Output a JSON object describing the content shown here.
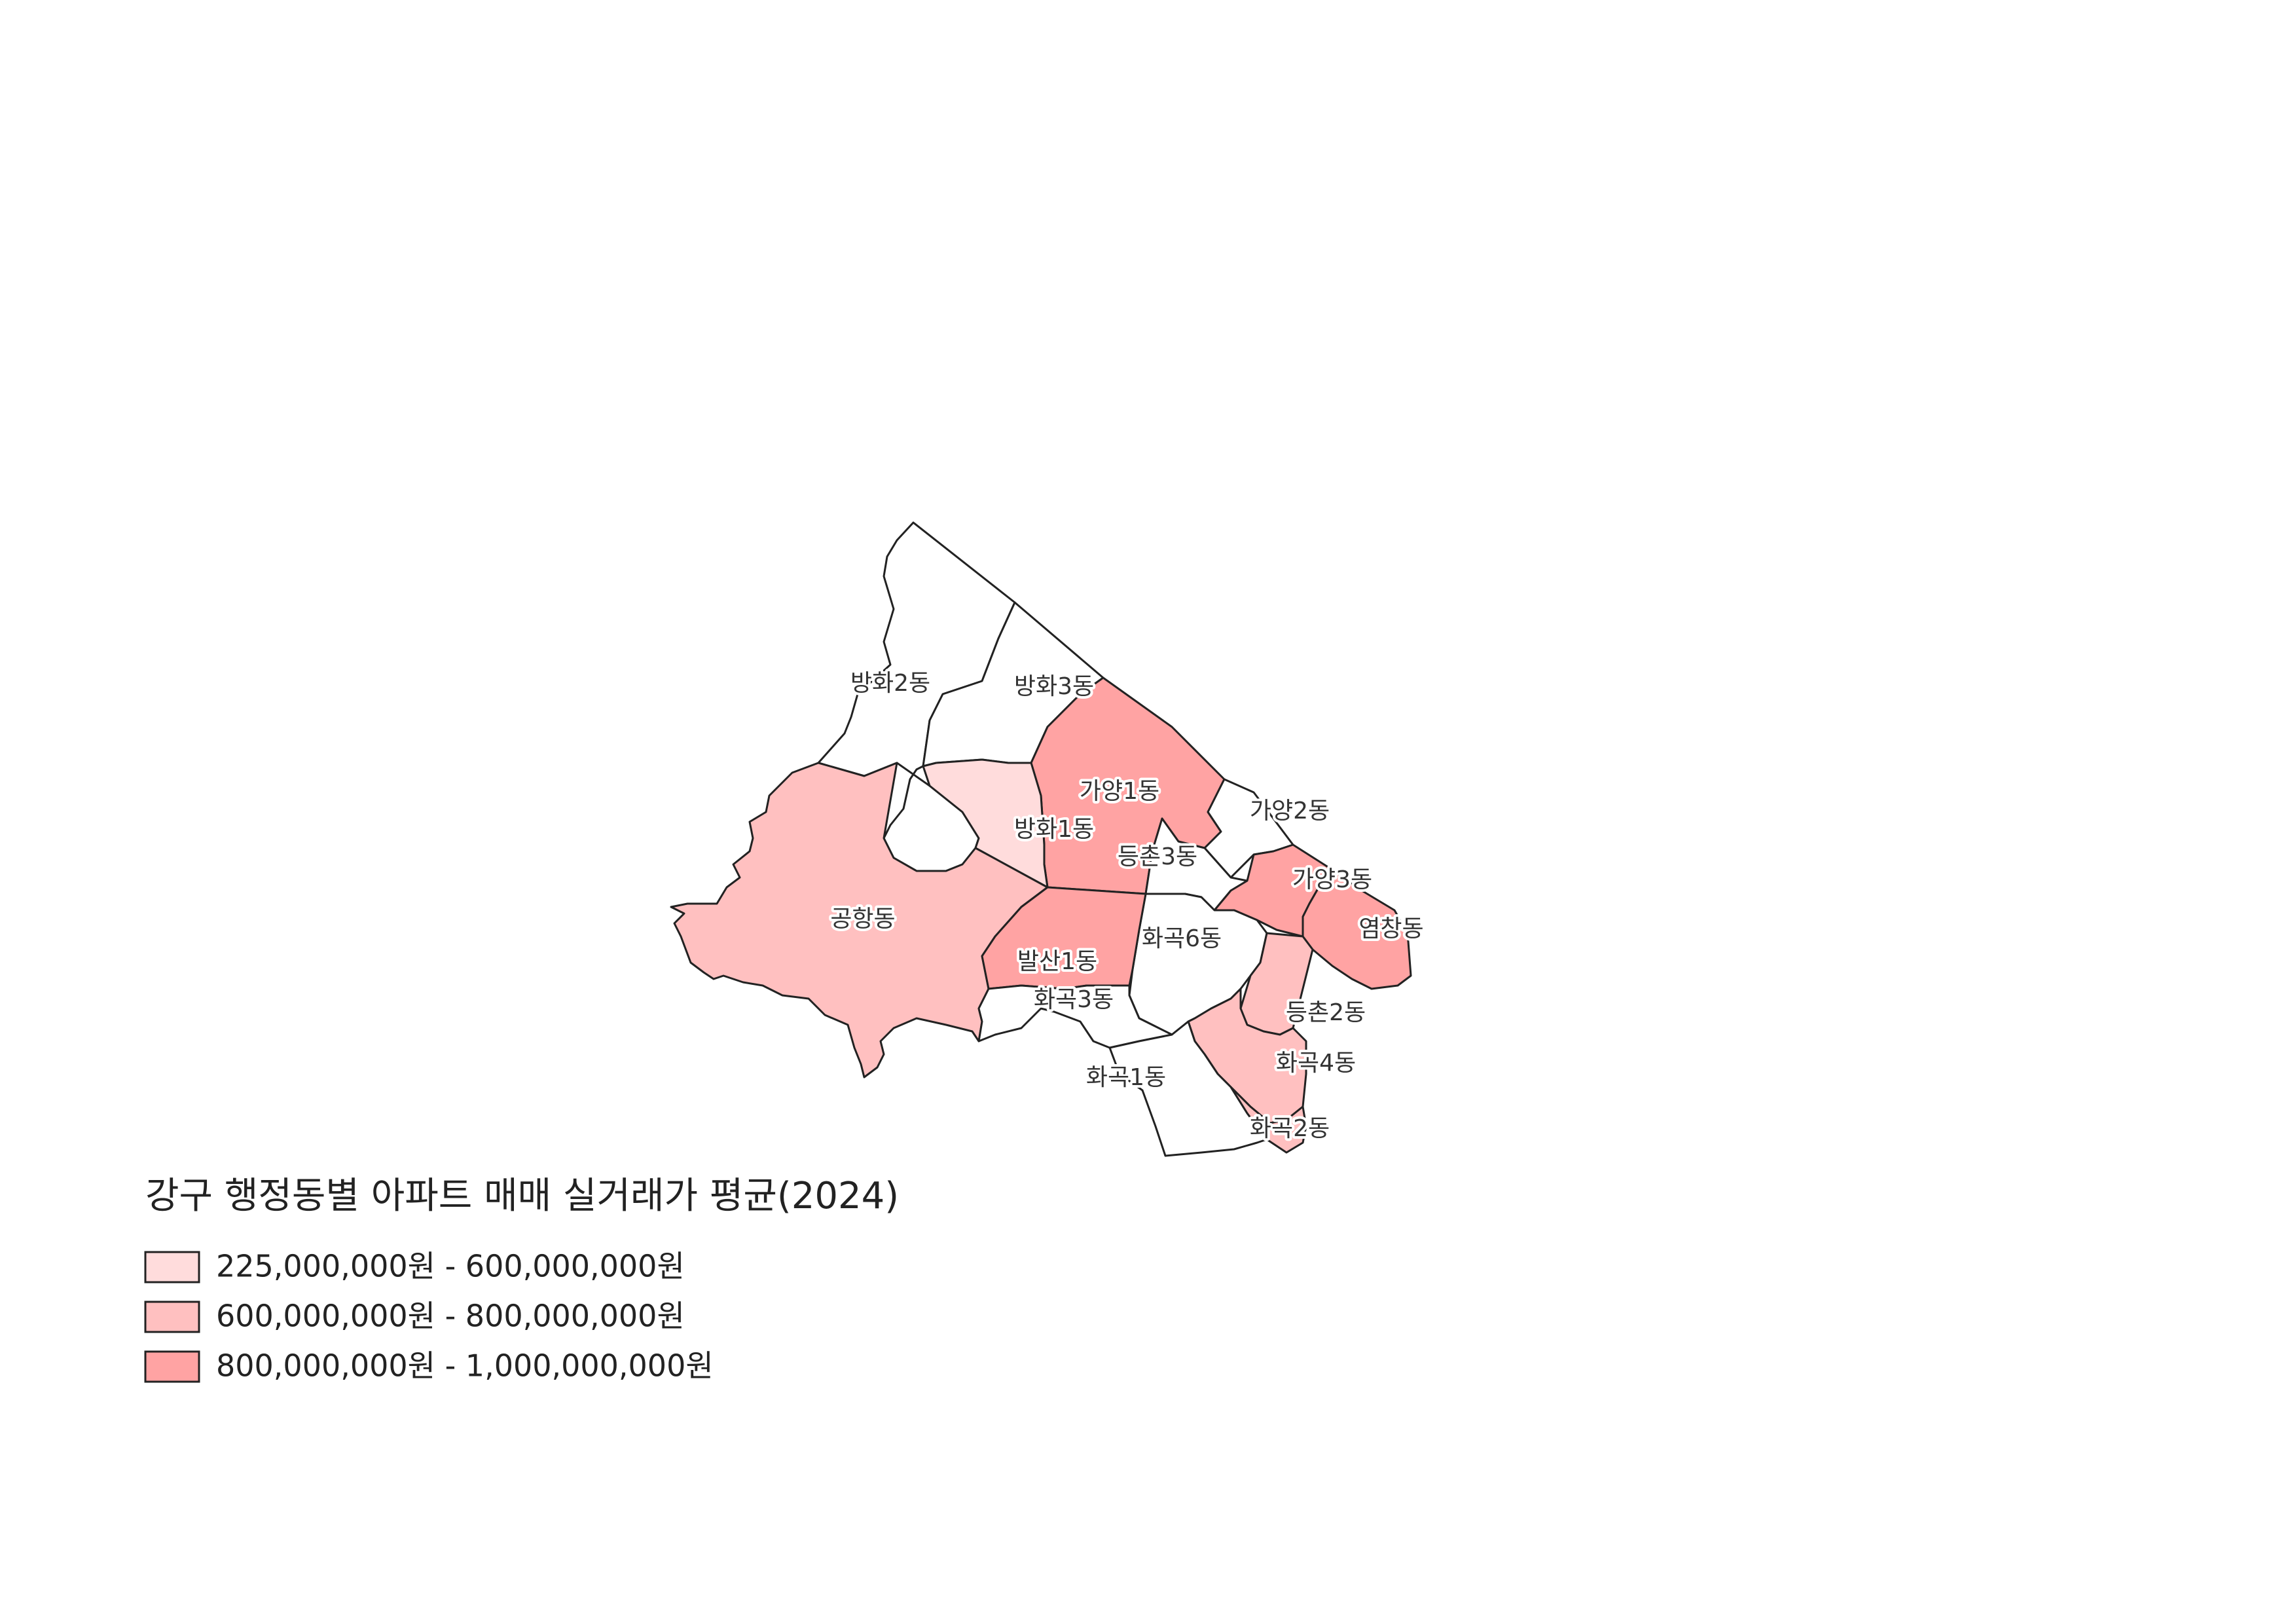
{
  "title": "강구 행정동별 아파트 매매 실거래가 평균(2024)",
  "colors": {
    "none": "#ffffff",
    "class1": "#ffdcdc",
    "class2": "#ffc0c0",
    "class3": "#ffa3a3",
    "border": "#222222"
  },
  "legend": [
    {
      "label": "225,000,000원 - 600,000,000원",
      "color": "#ffdcdc"
    },
    {
      "label": "600,000,000원 - 800,000,000원",
      "color": "#ffc0c0"
    },
    {
      "label": "800,000,000원 - 1,000,000,000원",
      "color": "#ffa3a3"
    }
  ],
  "districts": [
    {
      "name": "방화2동",
      "class": "none"
    },
    {
      "name": "방화3동",
      "class": "none"
    },
    {
      "name": "가양1동",
      "class": "class3"
    },
    {
      "name": "가양2동",
      "class": "none"
    },
    {
      "name": "방화1동",
      "class": "class1"
    },
    {
      "name": "등촌3동",
      "class": "none"
    },
    {
      "name": "가양3동",
      "class": "class3"
    },
    {
      "name": "공항동",
      "class": "class2"
    },
    {
      "name": "염창동",
      "class": "class3"
    },
    {
      "name": "화곡6동",
      "class": "none"
    },
    {
      "name": "발산1동",
      "class": "class3"
    },
    {
      "name": "화곡3동",
      "class": "none"
    },
    {
      "name": "등촌2동",
      "class": "class2"
    },
    {
      "name": "화곡4동",
      "class": "class2"
    },
    {
      "name": "화곡1동",
      "class": "none"
    },
    {
      "name": "화곡2동",
      "class": "class2"
    }
  ]
}
